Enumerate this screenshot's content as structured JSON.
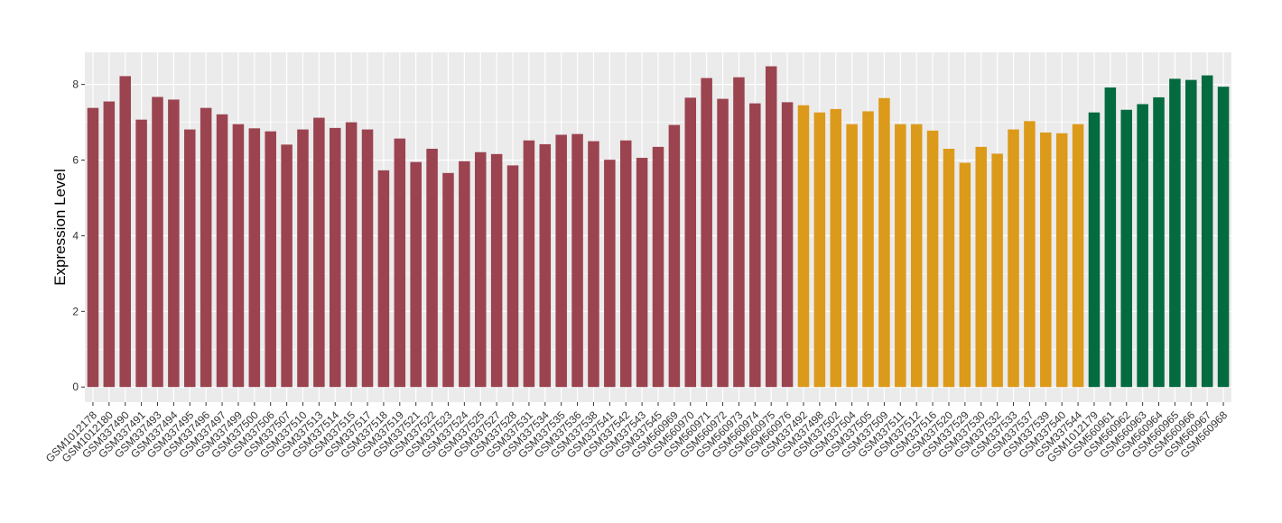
{
  "chart_data": {
    "type": "bar",
    "title": "",
    "xlabel": "",
    "ylabel": "Expression Level",
    "ylim": [
      -0.4,
      8.85
    ],
    "yticks": [
      0,
      2,
      4,
      6,
      8
    ],
    "grid": true,
    "legend": "none",
    "colors": {
      "group1": "#9b4450",
      "group2": "#dc9a1a",
      "group3": "#046a3f",
      "panel": "#ebebeb",
      "grid": "#ffffff"
    },
    "categories": [
      "GSM1012178",
      "GSM1012180",
      "GSM337490",
      "GSM337491",
      "GSM337493",
      "GSM337494",
      "GSM337495",
      "GSM337496",
      "GSM337497",
      "GSM337499",
      "GSM337500",
      "GSM337506",
      "GSM337507",
      "GSM337510",
      "GSM337513",
      "GSM337514",
      "GSM337515",
      "GSM337517",
      "GSM337518",
      "GSM337519",
      "GSM337521",
      "GSM337522",
      "GSM337523",
      "GSM337524",
      "GSM337525",
      "GSM337527",
      "GSM337528",
      "GSM337531",
      "GSM337534",
      "GSM337535",
      "GSM337536",
      "GSM337538",
      "GSM337541",
      "GSM337542",
      "GSM337543",
      "GSM337545",
      "GSM560969",
      "GSM560970",
      "GSM560971",
      "GSM560972",
      "GSM560973",
      "GSM560974",
      "GSM560975",
      "GSM560976",
      "GSM337492",
      "GSM337498",
      "GSM337502",
      "GSM337504",
      "GSM337505",
      "GSM337509",
      "GSM337511",
      "GSM337512",
      "GSM337516",
      "GSM337520",
      "GSM337529",
      "GSM337530",
      "GSM337532",
      "GSM337533",
      "GSM337537",
      "GSM337539",
      "GSM337540",
      "GSM337544",
      "GSM1012179",
      "GSM560961",
      "GSM560962",
      "GSM560963",
      "GSM560964",
      "GSM560965",
      "GSM560966",
      "GSM560967",
      "GSM560968"
    ],
    "values": [
      7.38,
      7.55,
      8.22,
      7.07,
      7.67,
      7.6,
      6.81,
      7.38,
      7.21,
      6.95,
      6.84,
      6.76,
      6.41,
      6.81,
      7.12,
      6.85,
      7.0,
      6.81,
      5.73,
      6.57,
      5.95,
      6.3,
      5.66,
      5.97,
      6.21,
      6.16,
      5.86,
      6.52,
      6.42,
      6.67,
      6.69,
      6.5,
      6.01,
      6.52,
      6.06,
      6.35,
      6.93,
      7.65,
      8.17,
      7.62,
      8.19,
      7.5,
      8.48,
      7.53,
      7.45,
      7.26,
      7.35,
      6.95,
      7.29,
      7.64,
      6.95,
      6.95,
      6.78,
      6.3,
      5.93,
      6.35,
      6.17,
      6.81,
      7.03,
      6.73,
      6.71,
      6.95,
      7.26,
      7.92,
      7.33,
      7.48,
      7.66,
      8.15,
      8.12,
      8.24,
      7.94
    ],
    "groups": [
      1,
      1,
      1,
      1,
      1,
      1,
      1,
      1,
      1,
      1,
      1,
      1,
      1,
      1,
      1,
      1,
      1,
      1,
      1,
      1,
      1,
      1,
      1,
      1,
      1,
      1,
      1,
      1,
      1,
      1,
      1,
      1,
      1,
      1,
      1,
      1,
      1,
      1,
      1,
      1,
      1,
      1,
      1,
      1,
      2,
      2,
      2,
      2,
      2,
      2,
      2,
      2,
      2,
      2,
      2,
      2,
      2,
      2,
      2,
      2,
      2,
      2,
      3,
      3,
      3,
      3,
      3,
      3,
      3,
      3,
      3
    ]
  }
}
